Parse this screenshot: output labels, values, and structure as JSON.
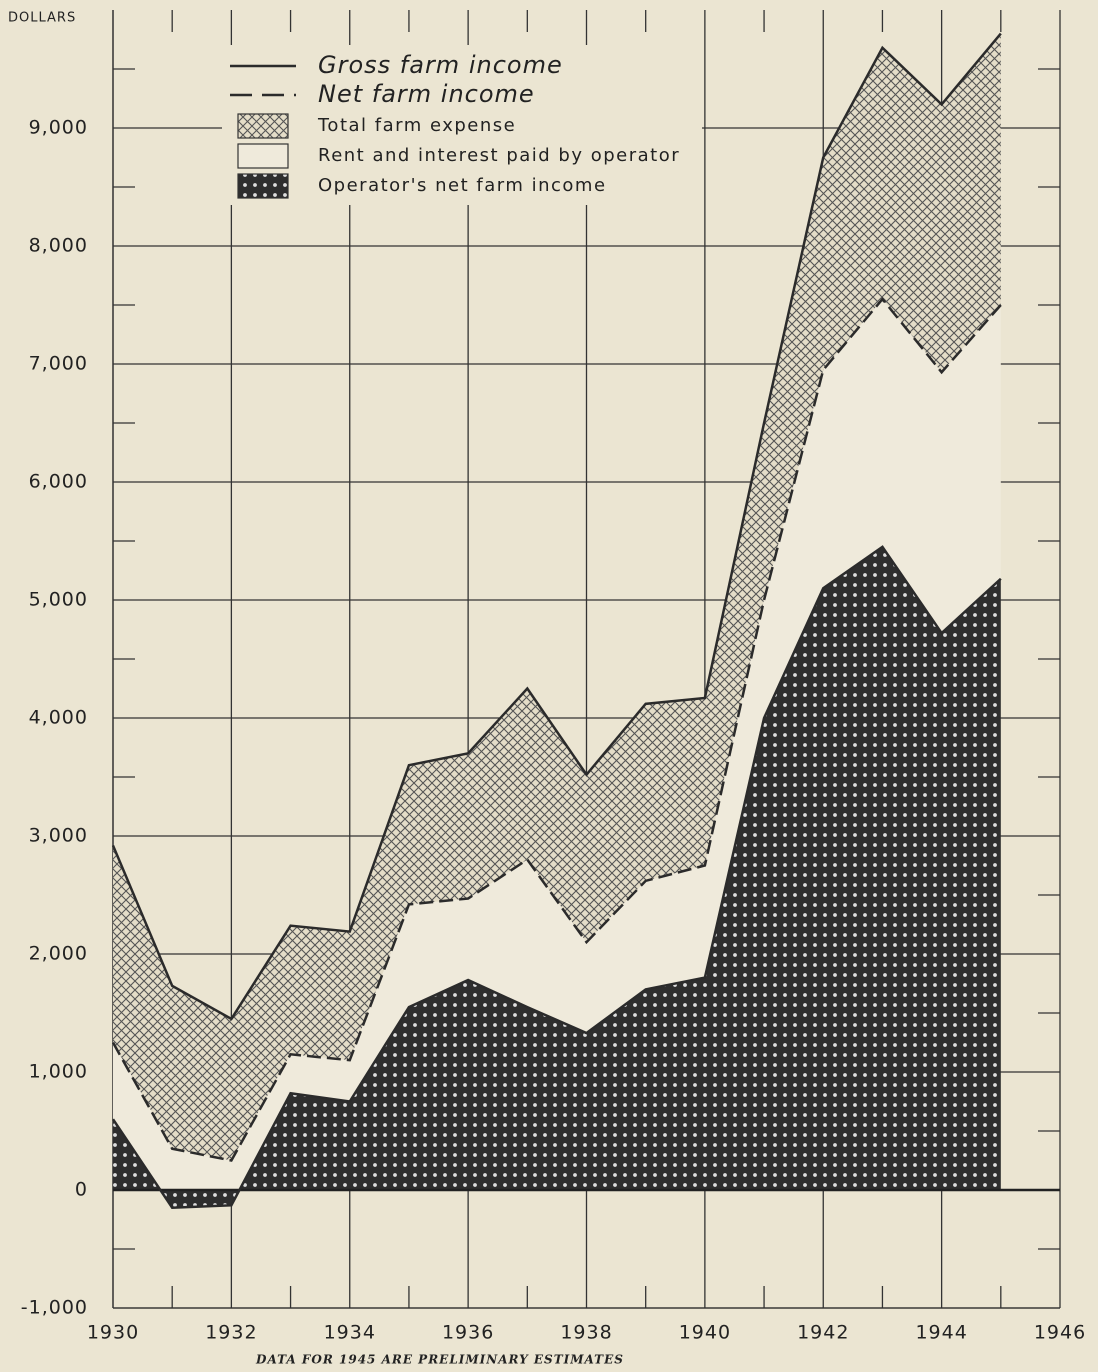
{
  "chart_data": {
    "type": "area",
    "y_axis_label": "DOLLARS",
    "footnote": "DATA FOR 1945 ARE PRELIMINARY ESTIMATES",
    "x": [
      1930,
      1931,
      1932,
      1933,
      1934,
      1935,
      1936,
      1937,
      1938,
      1939,
      1940,
      1941,
      1942,
      1943,
      1944,
      1945
    ],
    "series": [
      {
        "name": "Gross farm income",
        "color": "#2b2b2b",
        "style": "solid",
        "values": [
          2920,
          1730,
          1450,
          2240,
          2190,
          3600,
          3700,
          4250,
          3520,
          4120,
          4170,
          6500,
          8750,
          9680,
          9200,
          9800
        ]
      },
      {
        "name": "Net farm income",
        "color": "#2b2b2b",
        "style": "dashed",
        "values": [
          1250,
          350,
          250,
          1150,
          1100,
          2420,
          2470,
          2800,
          2100,
          2620,
          2750,
          5000,
          6950,
          7550,
          6930,
          7500
        ]
      },
      {
        "name": "Operator's net farm income",
        "color": "#2b2b2b",
        "style": "dotted-fill",
        "values": [
          600,
          -150,
          -130,
          820,
          750,
          1550,
          1780,
          1550,
          1330,
          1700,
          1800,
          4000,
          5100,
          5450,
          4720,
          5180
        ]
      }
    ],
    "fill_legend": [
      "Total farm expense",
      "Rent and interest paid by operator"
    ],
    "xlim": [
      1930,
      1946
    ],
    "xticks": [
      1930,
      1932,
      1934,
      1936,
      1938,
      1940,
      1942,
      1944,
      1946
    ],
    "x_minor_ticks": [
      1931,
      1933,
      1935,
      1937,
      1939,
      1941,
      1943,
      1945
    ],
    "ylim": [
      -1000,
      10000
    ],
    "yticks": [
      {
        "value": -1000,
        "label": "-1,000"
      },
      0,
      {
        "value": 1000,
        "label": "1,000"
      },
      {
        "value": 2000,
        "label": "2,000"
      },
      {
        "value": 3000,
        "label": "3,000"
      },
      {
        "value": 4000,
        "label": "4,000"
      },
      {
        "value": 5000,
        "label": "5,000"
      },
      {
        "value": 6000,
        "label": "6,000"
      },
      {
        "value": 7000,
        "label": "7,000"
      },
      {
        "value": 8000,
        "label": "8,000"
      },
      {
        "value": 9000,
        "label": "9,000"
      }
    ],
    "y_minor_ticks": [
      -500,
      500,
      1500,
      2500,
      3500,
      4500,
      5500,
      6500,
      7500,
      8500,
      9500
    ],
    "grid": true
  }
}
